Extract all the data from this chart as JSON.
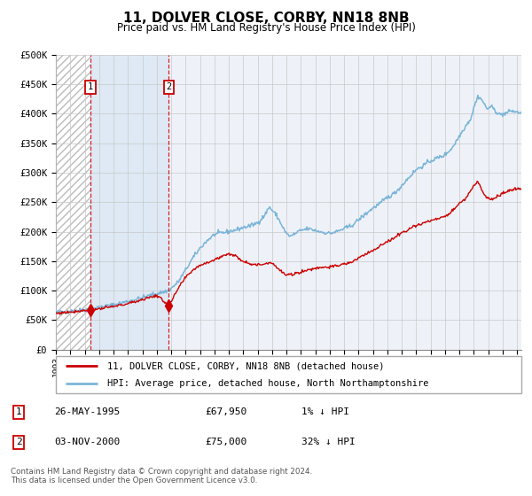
{
  "title": "11, DOLVER CLOSE, CORBY, NN18 8NB",
  "subtitle": "Price paid vs. HM Land Registry's House Price Index (HPI)",
  "sale1_price": 67950,
  "sale1_year": 1995.4,
  "sale2_price": 75000,
  "sale2_year": 2000.84,
  "hpi_color": "#7ab4d8",
  "price_color": "#cc0000",
  "legend_label_price": "11, DOLVER CLOSE, CORBY, NN18 8NB (detached house)",
  "legend_label_hpi": "HPI: Average price, detached house, North Northamptonshire",
  "table_row1": [
    "1",
    "26-MAY-1995",
    "£67,950",
    "1% ↓ HPI"
  ],
  "table_row2": [
    "2",
    "03-NOV-2000",
    "£75,000",
    "32% ↓ HPI"
  ],
  "footer": "Contains HM Land Registry data © Crown copyright and database right 2024.\nThis data is licensed under the Open Government Licence v3.0.",
  "ylim": [
    0,
    500000
  ],
  "yticks": [
    0,
    50000,
    100000,
    150000,
    200000,
    250000,
    300000,
    350000,
    400000,
    450000,
    500000
  ],
  "shade_color": "#dce8f5",
  "hatch_bg_color": "#f0f0f0",
  "chart_bg_color": "#eef2f8",
  "xstart": 1993,
  "xend": 2025.3
}
